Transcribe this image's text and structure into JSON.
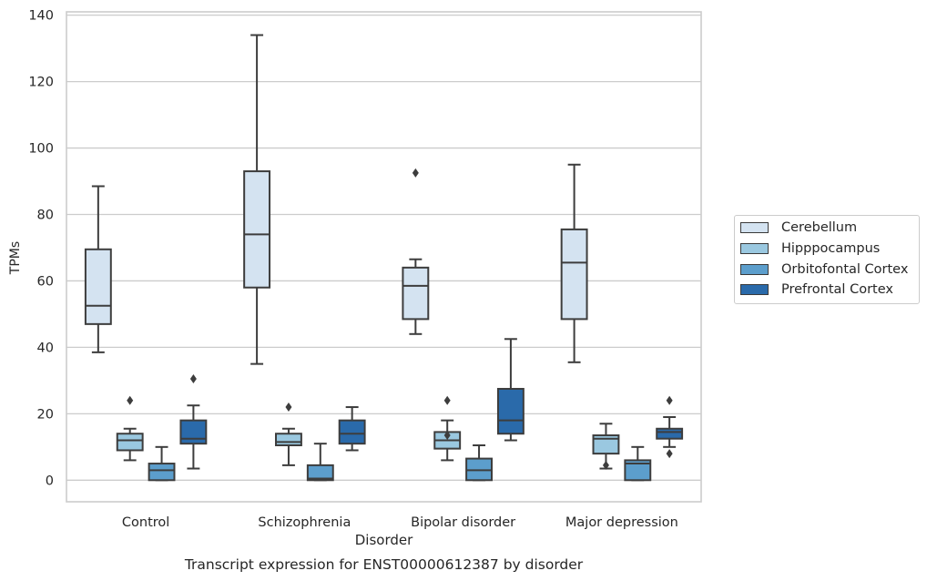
{
  "chart_data": {
    "type": "box",
    "title": "Transcript expression for ENST00000612387 by disorder",
    "xlabel": "Disorder",
    "ylabel": "TPMs",
    "ylim": [
      -6.5,
      141
    ],
    "yticks": [
      0,
      20,
      40,
      60,
      80,
      100,
      120,
      140
    ],
    "grid": true,
    "legend_position": "right",
    "categories": [
      "Control",
      "Schizophrenia",
      "Bipolar disorder",
      "Major depression"
    ],
    "series": [
      {
        "name": "Cerebellum",
        "color": "#d4e3f1",
        "boxes": [
          {
            "whisker_low": 38.5,
            "q1": 47,
            "median": 52.5,
            "q3": 69.5,
            "whisker_high": 88.5,
            "outliers": []
          },
          {
            "whisker_low": 35,
            "q1": 58,
            "median": 74,
            "q3": 93,
            "whisker_high": 134,
            "outliers": []
          },
          {
            "whisker_low": 44,
            "q1": 48.5,
            "median": 58.5,
            "q3": 64,
            "whisker_high": 66.5,
            "outliers": [
              92.5
            ]
          },
          {
            "whisker_low": 35.5,
            "q1": 48.5,
            "median": 65.5,
            "q3": 75.5,
            "whisker_high": 95,
            "outliers": []
          }
        ]
      },
      {
        "name": "Hipppocampus",
        "color": "#9ac8e0",
        "boxes": [
          {
            "whisker_low": 6,
            "q1": 9,
            "median": 12,
            "q3": 14,
            "whisker_high": 15.5,
            "outliers": [
              24
            ]
          },
          {
            "whisker_low": 4.5,
            "q1": 10.5,
            "median": 11.5,
            "q3": 14,
            "whisker_high": 15.5,
            "outliers": [
              22
            ]
          },
          {
            "whisker_low": 6,
            "q1": 9.5,
            "median": 12,
            "q3": 14.5,
            "whisker_high": 18,
            "outliers": [
              13.5,
              24
            ]
          },
          {
            "whisker_low": 3.5,
            "q1": 8,
            "median": 12.5,
            "q3": 13.5,
            "whisker_high": 17,
            "outliers": [
              4.5
            ]
          }
        ]
      },
      {
        "name": "Orbitofontal Cortex",
        "color": "#5c9ecc",
        "boxes": [
          {
            "whisker_low": 0,
            "q1": 0,
            "median": 3,
            "q3": 5,
            "whisker_high": 10,
            "outliers": []
          },
          {
            "whisker_low": 0,
            "q1": 0,
            "median": 0.5,
            "q3": 4.5,
            "whisker_high": 11,
            "outliers": []
          },
          {
            "whisker_low": 0,
            "q1": 0,
            "median": 3,
            "q3": 6.5,
            "whisker_high": 10.5,
            "outliers": []
          },
          {
            "whisker_low": 0,
            "q1": 0,
            "median": 5,
            "q3": 6,
            "whisker_high": 10,
            "outliers": []
          }
        ]
      },
      {
        "name": "Prefrontal Cortex",
        "color": "#2a6aaa",
        "boxes": [
          {
            "whisker_low": 3.5,
            "q1": 11,
            "median": 12.5,
            "q3": 18,
            "whisker_high": 22.5,
            "outliers": [
              30.5
            ]
          },
          {
            "whisker_low": 9,
            "q1": 11,
            "median": 14,
            "q3": 18,
            "whisker_high": 22,
            "outliers": []
          },
          {
            "whisker_low": 12,
            "q1": 14,
            "median": 18,
            "q3": 27.5,
            "whisker_high": 42.5,
            "outliers": []
          },
          {
            "whisker_low": 10,
            "q1": 12.5,
            "median": 14.5,
            "q3": 15.5,
            "whisker_high": 19,
            "outliers": [
              8,
              24
            ]
          }
        ]
      }
    ]
  },
  "legend": {
    "items": [
      {
        "label": "Cerebellum",
        "color": "#d4e3f1"
      },
      {
        "label": "Hipppocampus",
        "color": "#9ac8e0"
      },
      {
        "label": "Orbitofontal Cortex",
        "color": "#5c9ecc"
      },
      {
        "label": "Prefrontal Cortex",
        "color": "#2a6aaa"
      }
    ]
  }
}
